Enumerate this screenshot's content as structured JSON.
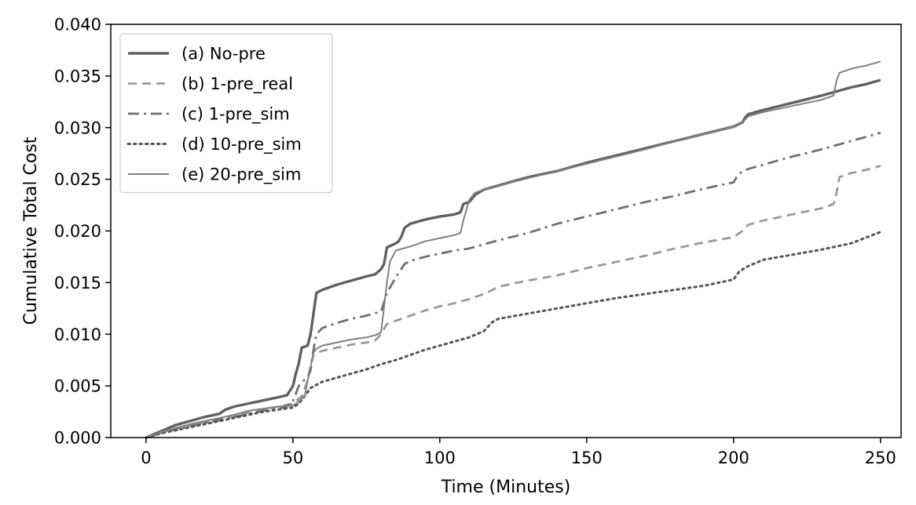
{
  "chart_data": {
    "type": "line",
    "title": "",
    "xlabel": "Time (Minutes)",
    "ylabel": "Cumulative Total Cost",
    "xlim": [
      -12,
      257
    ],
    "ylim": [
      0,
      0.04
    ],
    "xticks": [
      0,
      50,
      100,
      150,
      200,
      250
    ],
    "yticks": [
      0.0,
      0.005,
      0.01,
      0.015,
      0.02,
      0.025,
      0.03,
      0.035,
      0.04
    ],
    "ytick_labels": [
      "0.000",
      "0.005",
      "0.010",
      "0.015",
      "0.020",
      "0.025",
      "0.030",
      "0.035",
      "0.040"
    ],
    "grid": false,
    "legend_position": "top-left",
    "series": [
      {
        "name": "(a) No-pre",
        "style": "solid",
        "color": "#606060",
        "width": 3.4,
        "x": [
          0,
          5,
          10,
          15,
          20,
          25,
          27,
          30,
          35,
          40,
          45,
          48,
          50,
          51,
          52,
          53,
          55,
          56,
          57,
          58,
          60,
          65,
          70,
          75,
          78,
          80,
          81,
          82,
          85,
          86,
          87,
          88,
          90,
          95,
          100,
          105,
          107,
          108,
          110,
          112,
          115,
          120,
          130,
          140,
          150,
          160,
          170,
          180,
          190,
          200,
          203,
          204,
          205,
          210,
          220,
          230,
          235,
          240,
          245,
          250
        ],
        "y": [
          0,
          0.0006,
          0.0012,
          0.0016,
          0.002,
          0.0023,
          0.0027,
          0.003,
          0.0033,
          0.0036,
          0.0039,
          0.0041,
          0.005,
          0.0062,
          0.0072,
          0.0087,
          0.0089,
          0.01,
          0.012,
          0.014,
          0.0143,
          0.0148,
          0.0152,
          0.0156,
          0.0158,
          0.0163,
          0.0168,
          0.0184,
          0.0188,
          0.019,
          0.0195,
          0.0203,
          0.0207,
          0.0211,
          0.0214,
          0.0216,
          0.0218,
          0.0226,
          0.0228,
          0.0235,
          0.024,
          0.0244,
          0.0252,
          0.0258,
          0.0266,
          0.0273,
          0.028,
          0.0287,
          0.0294,
          0.0301,
          0.0305,
          0.031,
          0.0313,
          0.0317,
          0.0324,
          0.0331,
          0.0335,
          0.0339,
          0.0342,
          0.0346
        ]
      },
      {
        "name": "(b) 1-pre_real",
        "style": "dashed",
        "color": "#999999",
        "width": 2.8,
        "x": [
          0,
          5,
          10,
          15,
          20,
          25,
          30,
          35,
          40,
          45,
          50,
          53,
          55,
          56,
          57,
          58,
          60,
          65,
          70,
          75,
          78,
          80,
          82,
          85,
          88,
          90,
          95,
          100,
          105,
          110,
          115,
          118,
          120,
          130,
          140,
          150,
          160,
          170,
          180,
          190,
          200,
          203,
          205,
          210,
          220,
          230,
          234,
          235,
          236,
          240,
          245,
          250
        ],
        "y": [
          0,
          0.0005,
          0.0009,
          0.0012,
          0.0015,
          0.0018,
          0.0021,
          0.0024,
          0.0027,
          0.003,
          0.0033,
          0.004,
          0.0055,
          0.007,
          0.008,
          0.0082,
          0.0084,
          0.0087,
          0.009,
          0.0092,
          0.0094,
          0.01,
          0.011,
          0.0113,
          0.0116,
          0.0118,
          0.0123,
          0.0127,
          0.013,
          0.0134,
          0.0139,
          0.0143,
          0.0146,
          0.0152,
          0.0157,
          0.0164,
          0.017,
          0.0176,
          0.0183,
          0.0189,
          0.0194,
          0.02,
          0.0206,
          0.021,
          0.0216,
          0.0222,
          0.0226,
          0.0236,
          0.0252,
          0.0256,
          0.0259,
          0.0263
        ]
      },
      {
        "name": "(c) 1-pre_sim",
        "style": "dashdot",
        "color": "#707070",
        "width": 2.8,
        "x": [
          0,
          5,
          10,
          15,
          20,
          25,
          30,
          35,
          40,
          45,
          48,
          50,
          52,
          54,
          55,
          56,
          57,
          58,
          60,
          65,
          70,
          75,
          80,
          82,
          85,
          88,
          90,
          95,
          100,
          105,
          110,
          120,
          130,
          140,
          150,
          160,
          170,
          180,
          190,
          200,
          201,
          203,
          205,
          210,
          220,
          230,
          240,
          250
        ],
        "y": [
          0,
          0.0004,
          0.0008,
          0.0011,
          0.0014,
          0.0017,
          0.002,
          0.0023,
          0.0026,
          0.0028,
          0.003,
          0.0035,
          0.005,
          0.0056,
          0.0058,
          0.0065,
          0.0085,
          0.01,
          0.0106,
          0.0111,
          0.0115,
          0.0118,
          0.0122,
          0.014,
          0.0155,
          0.0168,
          0.0171,
          0.0175,
          0.0178,
          0.0181,
          0.0183,
          0.0191,
          0.0198,
          0.0207,
          0.0214,
          0.0221,
          0.0228,
          0.0234,
          0.0241,
          0.0247,
          0.0252,
          0.0258,
          0.026,
          0.0264,
          0.0272,
          0.0279,
          0.0287,
          0.0295
        ]
      },
      {
        "name": "(d) 10-pre_sim",
        "style": "dotted",
        "color": "#555555",
        "width": 3.0,
        "x": [
          0,
          5,
          10,
          15,
          20,
          25,
          30,
          35,
          40,
          45,
          50,
          52,
          54,
          56,
          58,
          60,
          65,
          70,
          75,
          80,
          85,
          90,
          95,
          100,
          105,
          110,
          115,
          118,
          120,
          130,
          140,
          150,
          160,
          170,
          180,
          190,
          200,
          202,
          205,
          210,
          220,
          230,
          240,
          250
        ],
        "y": [
          0,
          0.0004,
          0.0007,
          0.001,
          0.0013,
          0.0016,
          0.0019,
          0.0022,
          0.0025,
          0.0027,
          0.0029,
          0.0033,
          0.004,
          0.0048,
          0.0051,
          0.0054,
          0.0058,
          0.0062,
          0.0066,
          0.0071,
          0.0075,
          0.008,
          0.0085,
          0.0089,
          0.0093,
          0.0097,
          0.0103,
          0.0112,
          0.0115,
          0.012,
          0.0125,
          0.013,
          0.0135,
          0.0139,
          0.0143,
          0.0147,
          0.0153,
          0.0161,
          0.0166,
          0.0172,
          0.0177,
          0.0182,
          0.0188,
          0.0199
        ]
      },
      {
        "name": "(e) 20-pre_sim",
        "style": "solid",
        "color": "#808080",
        "width": 2.0,
        "x": [
          0,
          5,
          10,
          15,
          20,
          25,
          30,
          35,
          40,
          45,
          50,
          52,
          54,
          55,
          56,
          57,
          58,
          60,
          65,
          70,
          75,
          78,
          80,
          82,
          83,
          85,
          90,
          95,
          100,
          105,
          107,
          108,
          110,
          112,
          115,
          120,
          130,
          140,
          150,
          160,
          170,
          180,
          190,
          200,
          203,
          205,
          210,
          220,
          230,
          234,
          235,
          236,
          240,
          245,
          250
        ],
        "y": [
          0,
          0.0005,
          0.0009,
          0.0013,
          0.0016,
          0.0019,
          0.0022,
          0.0026,
          0.0028,
          0.003,
          0.0031,
          0.0035,
          0.004,
          0.0055,
          0.0068,
          0.0082,
          0.0086,
          0.0089,
          0.0092,
          0.0095,
          0.0097,
          0.0099,
          0.0102,
          0.015,
          0.017,
          0.0181,
          0.0185,
          0.019,
          0.0193,
          0.0196,
          0.0198,
          0.021,
          0.023,
          0.0237,
          0.024,
          0.0244,
          0.0251,
          0.0258,
          0.0265,
          0.0272,
          0.0279,
          0.0287,
          0.0294,
          0.0301,
          0.0305,
          0.0311,
          0.0315,
          0.0321,
          0.0327,
          0.0331,
          0.0345,
          0.0353,
          0.0357,
          0.036,
          0.0364
        ]
      }
    ]
  }
}
